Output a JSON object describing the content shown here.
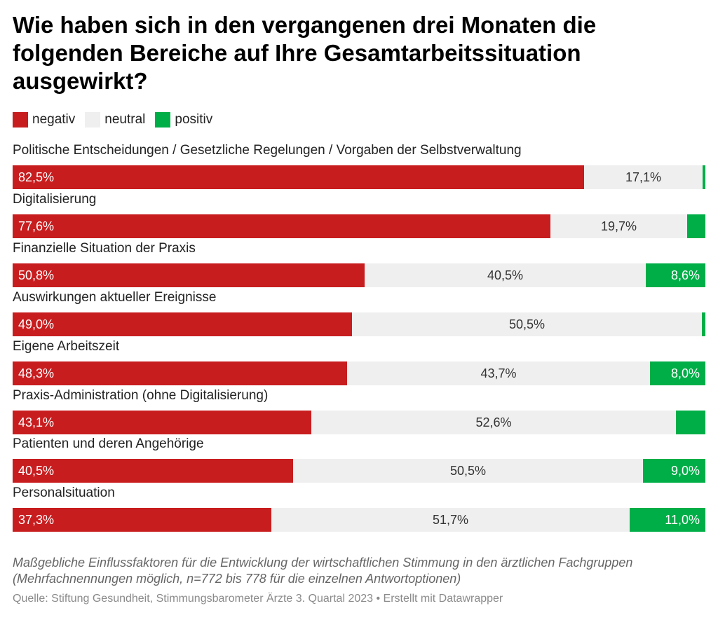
{
  "title": "Wie haben sich in den vergangenen drei Monaten die folgenden Bereiche auf Ihre Gesamtarbeitssituation ausgewirkt?",
  "legend": [
    {
      "label": "negativ",
      "color": "#c81d1f"
    },
    {
      "label": "neutral",
      "color": "#efefef"
    },
    {
      "label": "positiv",
      "color": "#00ae47"
    }
  ],
  "notes": "Maßgebliche Einflussfaktoren für die Entwicklung der wirtschaftlichen Stimmung in den ärztlichen Fachgruppen (Mehrfachnennungen möglich, n=772 bis 778 für die einzelnen Antwortoptionen)",
  "source": "Quelle: Stiftung Gesundheit, Stimmungsbarometer Ärzte 3. Quartal 2023 • Erstellt mit Datawrapper",
  "chart_data": {
    "type": "bar",
    "orientation": "horizontal",
    "stacked": true,
    "normalized_to": 100,
    "title": "Wie haben sich in den vergangenen drei Monaten die folgenden Bereiche auf Ihre Gesamtarbeitssituation ausgewirkt?",
    "legend_position": "top-left",
    "categories": [
      "Politische Entscheidungen / Gesetzliche Regelungen / Vorgaben der Selbstverwaltung",
      "Digitalisierung",
      "Finanzielle Situation der Praxis",
      "Auswirkungen aktueller Ereignisse",
      "Eigene Arbeitszeit",
      "Praxis-Administration (ohne Digitalisierung)",
      "Patienten und deren Angehörige",
      "Personalsituation"
    ],
    "series": [
      {
        "name": "negativ",
        "color": "#c81d1f",
        "values": [
          82.5,
          77.6,
          50.8,
          49.0,
          48.3,
          43.1,
          40.5,
          37.3
        ],
        "labels": [
          "82,5%",
          "77,6%",
          "50,8%",
          "49,0%",
          "48,3%",
          "43,1%",
          "40,5%",
          "37,3%"
        ]
      },
      {
        "name": "neutral",
        "color": "#efefef",
        "values": [
          17.1,
          19.7,
          40.5,
          50.5,
          43.7,
          52.6,
          50.5,
          51.7
        ],
        "labels": [
          "17,1%",
          "19,7%",
          "40,5%",
          "50,5%",
          "43,7%",
          "52,6%",
          "50,5%",
          "51,7%"
        ]
      },
      {
        "name": "positiv",
        "color": "#00ae47",
        "values": [
          0.4,
          2.7,
          8.6,
          0.5,
          8.0,
          4.3,
          9.0,
          11.0
        ],
        "labels": [
          "",
          "",
          "8,6%",
          "",
          "8,0%",
          "",
          "9,0%",
          "11,0%"
        ]
      }
    ]
  }
}
